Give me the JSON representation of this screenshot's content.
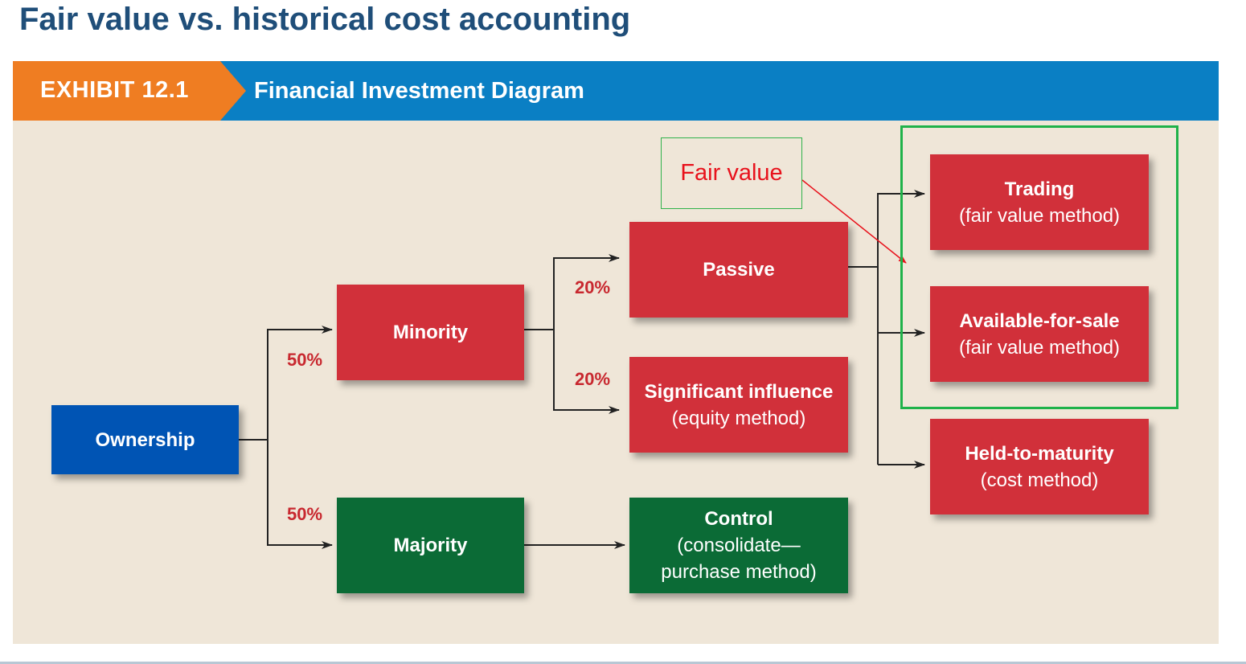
{
  "slide": {
    "title": "Fair value vs. historical cost accounting"
  },
  "exhibit": {
    "tag": "EXHIBIT 12.1",
    "title": "Financial Investment Diagram"
  },
  "nodes": {
    "ownership": "Ownership",
    "minority": "Minority",
    "majority": "Majority",
    "passive": "Passive",
    "significant": {
      "title": "Significant influence",
      "sub": "(equity method)"
    },
    "control": {
      "title": "Control",
      "sub1": "(consolidate—",
      "sub2": "purchase method)"
    },
    "trading": {
      "title": "Trading",
      "sub": "(fair value method)"
    },
    "afs": {
      "title": "Available-for-sale",
      "sub": "(fair value method)"
    },
    "htm": {
      "title": "Held-to-maturity",
      "sub": "(cost method)"
    }
  },
  "percentages": {
    "minority": "50%",
    "majority": "50%",
    "passive": "20%",
    "significant": "20%"
  },
  "annotation": {
    "label": "Fair value"
  },
  "colors": {
    "title": "#1f4e79",
    "banner": "#0a7fc4",
    "tag": "#ef7d22",
    "background": "#efe6d8",
    "red_box": "#d1303a",
    "blue_box": "#0054b4",
    "green_box": "#0b6b36",
    "percent_text": "#c8282f",
    "annotation_text": "#e8121c",
    "highlight": "#1fb24a"
  }
}
